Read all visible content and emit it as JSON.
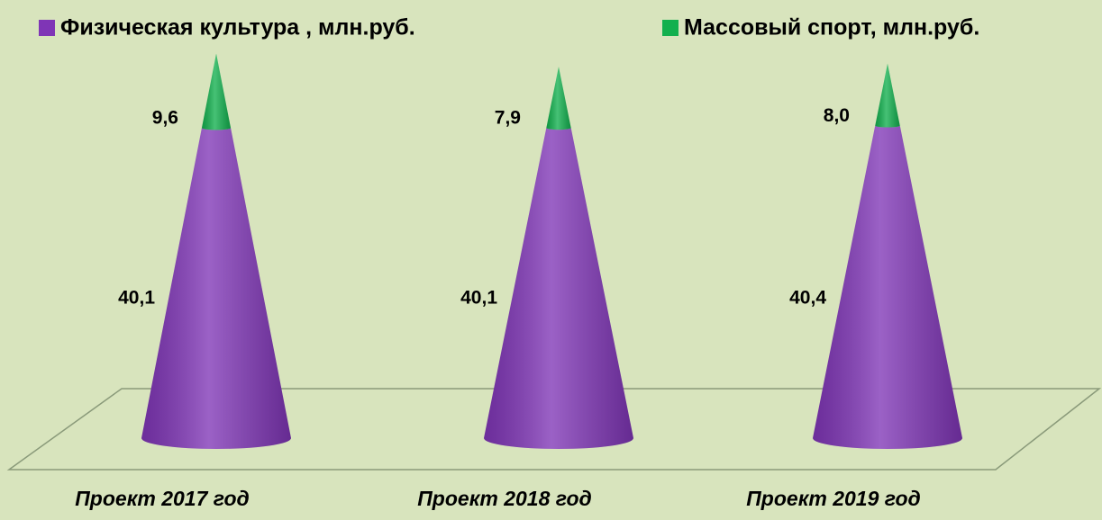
{
  "chart_data": {
    "type": "cone",
    "categories": [
      "Проект 2017 год",
      "Проект 2018 год",
      "Проект 2019 год"
    ],
    "series": [
      {
        "name": "Физическая культура , млн.руб.",
        "color": "#7f35b6",
        "values": [
          40.1,
          40.1,
          40.4
        ],
        "value_labels": [
          "40,1",
          "40,1",
          "40,4"
        ]
      },
      {
        "name": "Массовый спорт, млн.руб.",
        "color": "#12b04e",
        "values": [
          9.6,
          7.9,
          8.0
        ],
        "value_labels": [
          "9,6",
          "7,9",
          "8,0"
        ]
      }
    ]
  }
}
